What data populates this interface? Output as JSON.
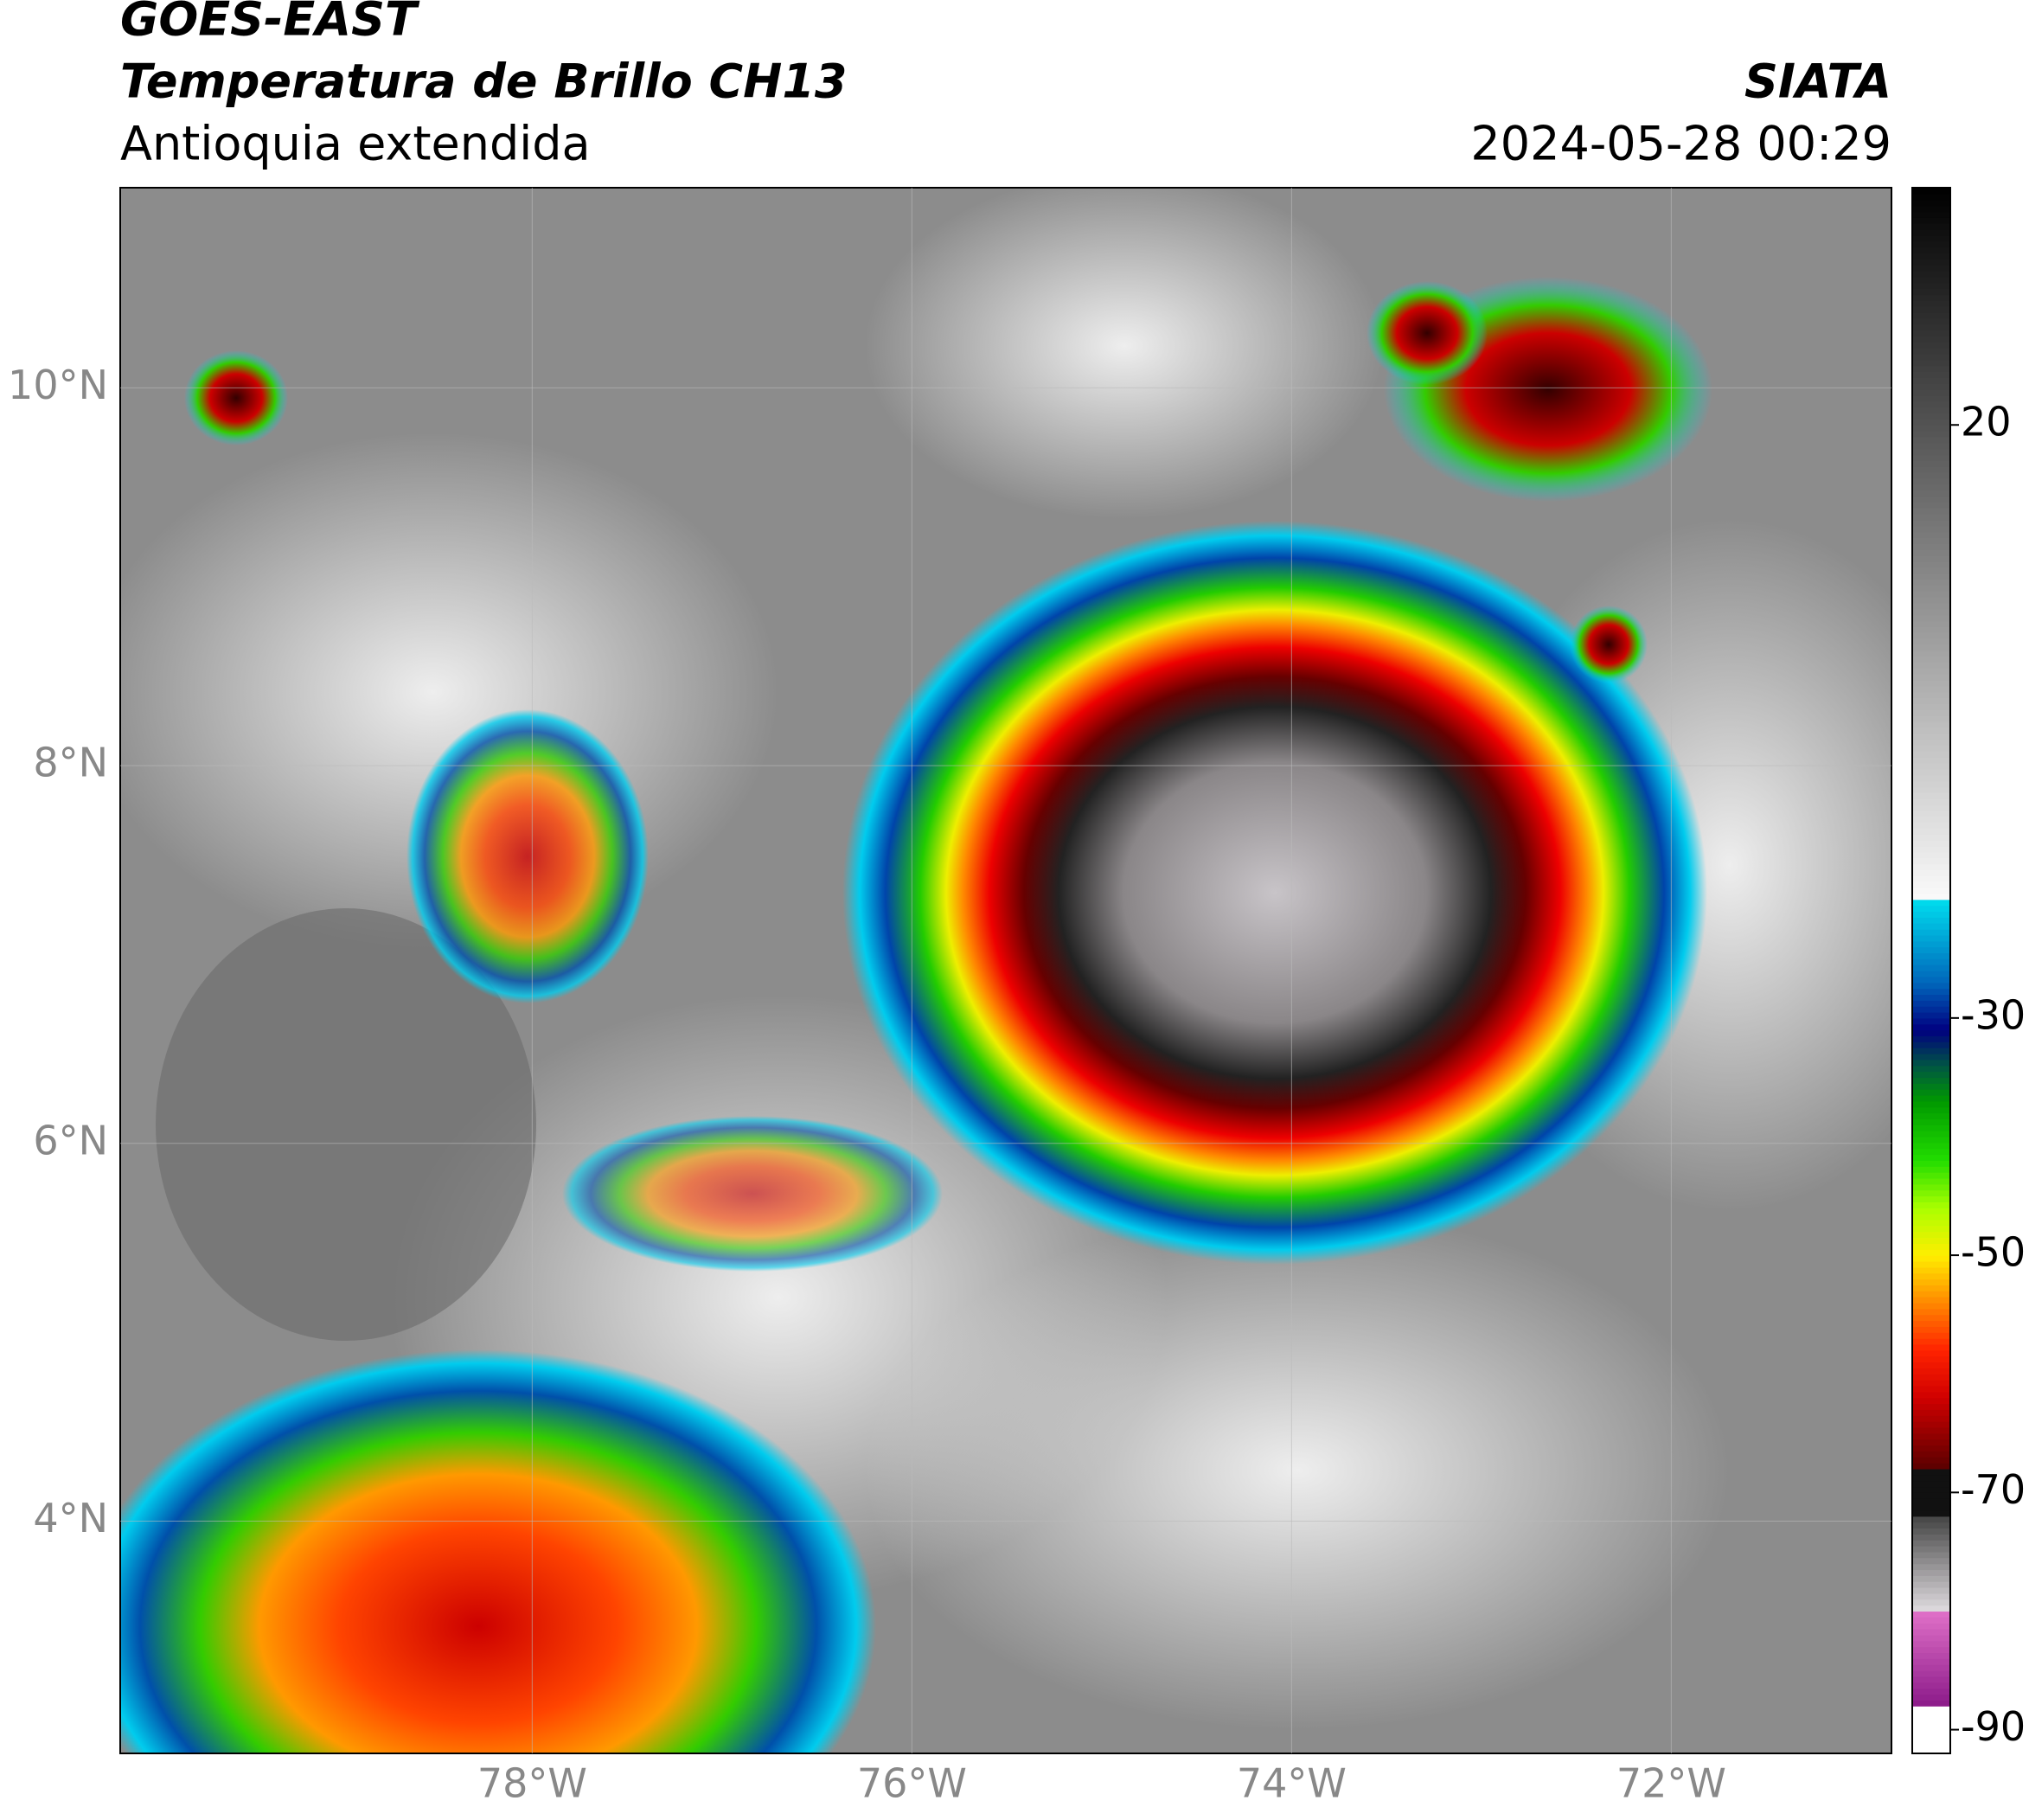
{
  "chart_data": {
    "type": "map",
    "title": "GOES-EAST",
    "subtitle": "Temperatura de Brillo CH13",
    "region": "Antioquia extendida",
    "source": "SIATA",
    "timestamp": "2024-05-28 00:29",
    "xlim": [
      -80.17,
      -70.84
    ],
    "ylim": [
      2.77,
      11.06
    ],
    "xticks": [
      {
        "value": -78,
        "label": "78°W"
      },
      {
        "value": -76,
        "label": "76°W"
      },
      {
        "value": -74,
        "label": "74°W"
      },
      {
        "value": -72,
        "label": "72°W"
      }
    ],
    "yticks": [
      {
        "value": 4,
        "label": "4°N"
      },
      {
        "value": 6,
        "label": "6°N"
      },
      {
        "value": 8,
        "label": "8°N"
      },
      {
        "value": 10,
        "label": "10°N"
      }
    ],
    "grid": true,
    "colorbar": {
      "lim": [
        -92,
        40
      ],
      "ticks": [
        20,
        -30,
        -50,
        -70,
        -90
      ]
    }
  }
}
